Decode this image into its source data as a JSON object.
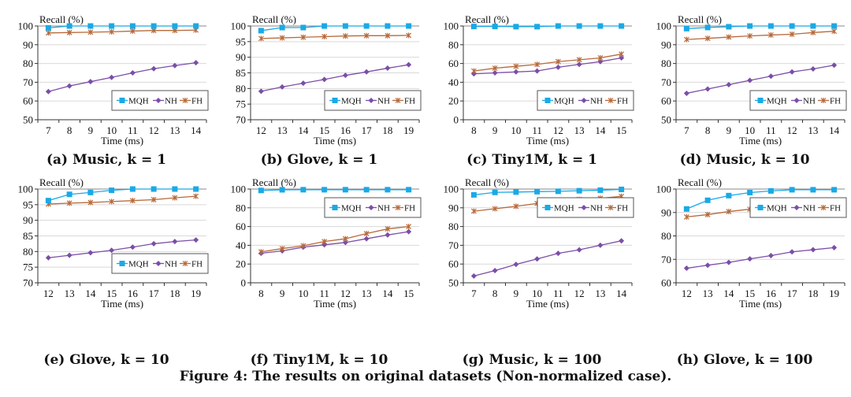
{
  "figure_caption": "Figure 4: The results on original datasets (Non-normalized case).",
  "series_styles": {
    "MQH": {
      "color": "#1aa9e6",
      "marker": "square"
    },
    "NH": {
      "color": "#7b4ea8",
      "marker": "diamond"
    },
    "FH": {
      "color": "#b8693a",
      "marker": "star"
    }
  },
  "chart_data": [
    {
      "type": "line",
      "caption": "(a) Music, k = 1",
      "title": "",
      "ylabel": "Recall (%)",
      "xlabel": "Time (ms)",
      "x": [
        7,
        8,
        9,
        10,
        11,
        12,
        13,
        14
      ],
      "ylim": [
        50,
        100
      ],
      "yticks": [
        50,
        60,
        70,
        80,
        90,
        100
      ],
      "grid": true,
      "legend": "bottom-right",
      "series": [
        {
          "name": "MQH",
          "values": [
            99.0,
            100,
            100,
            100,
            100,
            100,
            100,
            100
          ]
        },
        {
          "name": "NH",
          "values": [
            65.0,
            68.0,
            70.3,
            72.6,
            75.0,
            77.2,
            78.9,
            80.4
          ]
        },
        {
          "name": "FH",
          "values": [
            96.3,
            96.5,
            96.7,
            96.9,
            97.3,
            97.6,
            97.6,
            97.8
          ]
        }
      ]
    },
    {
      "type": "line",
      "caption": "(b) Glove, k = 1",
      "title": "",
      "ylabel": "Recall (%)",
      "xlabel": "Time (ms)",
      "x": [
        12,
        13,
        14,
        15,
        16,
        17,
        18,
        19
      ],
      "ylim": [
        70,
        100
      ],
      "yticks": [
        70,
        75,
        80,
        85,
        90,
        95,
        100
      ],
      "grid": true,
      "legend": "bottom-right",
      "series": [
        {
          "name": "MQH",
          "values": [
            98.5,
            99.5,
            99.5,
            100,
            100,
            100,
            100,
            100
          ]
        },
        {
          "name": "NH",
          "values": [
            79.1,
            80.5,
            81.7,
            82.9,
            84.2,
            85.3,
            86.5,
            87.6
          ]
        },
        {
          "name": "FH",
          "values": [
            96.0,
            96.2,
            96.4,
            96.6,
            96.8,
            96.9,
            96.9,
            97.0
          ]
        }
      ]
    },
    {
      "type": "line",
      "caption": "(c) Tiny1M, k = 1",
      "title": "",
      "ylabel": "Recall (%)",
      "xlabel": "Time (ms)",
      "x": [
        8,
        9,
        10,
        11,
        12,
        13,
        14,
        15
      ],
      "ylim": [
        0,
        100
      ],
      "yticks": [
        0,
        20,
        40,
        60,
        80,
        100
      ],
      "grid": true,
      "legend": "bottom-right",
      "series": [
        {
          "name": "MQH",
          "values": [
            99.5,
            99.5,
            99.3,
            99.3,
            100,
            100,
            100,
            100
          ]
        },
        {
          "name": "NH",
          "values": [
            49.0,
            50.0,
            51.0,
            52.0,
            56.0,
            59.0,
            62.0,
            66.0
          ]
        },
        {
          "name": "FH",
          "values": [
            52.0,
            55.0,
            57.0,
            59.0,
            62.0,
            64.0,
            66.0,
            70.0
          ]
        }
      ]
    },
    {
      "type": "line",
      "caption": "(d) Music, k = 10",
      "title": "",
      "ylabel": "Recall (%)",
      "xlabel": "Time (ms)",
      "x": [
        7,
        8,
        9,
        10,
        11,
        12,
        13,
        14
      ],
      "ylim": [
        50,
        100
      ],
      "yticks": [
        50,
        60,
        70,
        80,
        90,
        100
      ],
      "grid": true,
      "legend": "bottom-right",
      "series": [
        {
          "name": "MQH",
          "values": [
            98.6,
            99.2,
            99.6,
            100,
            100,
            100,
            100,
            100
          ]
        },
        {
          "name": "NH",
          "values": [
            64.1,
            66.4,
            68.7,
            71.0,
            73.2,
            75.5,
            77.1,
            79.1
          ]
        },
        {
          "name": "FH",
          "values": [
            92.8,
            93.4,
            94.1,
            94.7,
            95.2,
            95.6,
            96.5,
            97.2
          ]
        }
      ]
    },
    {
      "type": "line",
      "caption": "(e) Glove, k = 10",
      "title": "",
      "ylabel": "Recall (%)",
      "xlabel": "Time (ms)",
      "x": [
        12,
        13,
        14,
        15,
        16,
        17,
        18,
        19
      ],
      "ylim": [
        70,
        100
      ],
      "yticks": [
        70,
        75,
        80,
        85,
        90,
        95,
        100
      ],
      "grid": true,
      "legend": "bottom-right",
      "series": [
        {
          "name": "MQH",
          "values": [
            96.3,
            98.3,
            98.9,
            99.6,
            100,
            100,
            100,
            100
          ]
        },
        {
          "name": "NH",
          "values": [
            78.0,
            78.8,
            79.6,
            80.4,
            81.4,
            82.5,
            83.2,
            83.7
          ]
        },
        {
          "name": "FH",
          "values": [
            95.2,
            95.5,
            95.7,
            96.0,
            96.3,
            96.6,
            97.2,
            97.7
          ]
        }
      ]
    },
    {
      "type": "line",
      "caption": "(f) Tiny1M, k = 10",
      "title": "",
      "ylabel": "Recall (%)",
      "xlabel": "Time (ms)",
      "x": [
        8,
        9,
        10,
        11,
        12,
        13,
        14,
        15
      ],
      "ylim": [
        0,
        100
      ],
      "yticks": [
        0,
        20,
        40,
        60,
        80,
        100
      ],
      "grid": true,
      "legend": "top-right",
      "series": [
        {
          "name": "MQH",
          "values": [
            98.5,
            99.2,
            99.3,
            99.3,
            99.3,
            99.3,
            99.3,
            99.3
          ]
        },
        {
          "name": "NH",
          "values": [
            31.5,
            34.0,
            38.0,
            40.5,
            43.0,
            47.0,
            51.0,
            54.5
          ]
        },
        {
          "name": "FH",
          "values": [
            33.0,
            36.5,
            39.5,
            44.0,
            47.0,
            52.5,
            57.5,
            60.0
          ]
        }
      ]
    },
    {
      "type": "line",
      "caption": "(g) Music, k = 100",
      "title": "",
      "ylabel": "Recall (%)",
      "xlabel": "Time (ms)",
      "x": [
        7,
        8,
        9,
        10,
        11,
        12,
        13,
        14
      ],
      "ylim": [
        50,
        100
      ],
      "yticks": [
        50,
        60,
        70,
        80,
        90,
        100
      ],
      "grid": true,
      "legend": "top-right",
      "series": [
        {
          "name": "MQH",
          "values": [
            96.9,
            98.2,
            98.4,
            98.6,
            98.8,
            99.1,
            99.4,
            99.8
          ]
        },
        {
          "name": "NH",
          "values": [
            53.6,
            56.5,
            59.8,
            62.7,
            65.7,
            67.6,
            70.0,
            72.4
          ]
        },
        {
          "name": "FH",
          "values": [
            88.2,
            89.5,
            90.8,
            92.3,
            93.5,
            94.5,
            95.1,
            96.1
          ]
        }
      ]
    },
    {
      "type": "line",
      "caption": "(h) Glove, k = 100",
      "title": "",
      "ylabel": "Recall (%)",
      "xlabel": "Time (ms)",
      "x": [
        12,
        13,
        14,
        15,
        16,
        17,
        18,
        19
      ],
      "ylim": [
        60,
        100
      ],
      "yticks": [
        60,
        70,
        80,
        90,
        100
      ],
      "grid": true,
      "legend": "top-right",
      "series": [
        {
          "name": "MQH",
          "values": [
            91.5,
            95.2,
            97.2,
            98.5,
            99.2,
            99.7,
            99.7,
            99.7
          ]
        },
        {
          "name": "NH",
          "values": [
            66.2,
            67.5,
            68.7,
            70.2,
            71.6,
            73.2,
            74.1,
            75.0
          ]
        },
        {
          "name": "FH",
          "values": [
            88.1,
            89.1,
            90.4,
            91.4,
            91.7,
            92.3,
            92.6,
            93.7
          ]
        }
      ]
    }
  ]
}
